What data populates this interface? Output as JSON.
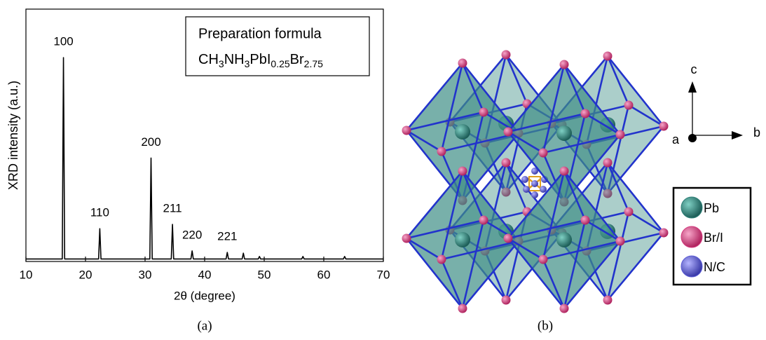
{
  "chart_data": {
    "type": "line",
    "legend_title": "Preparation formula",
    "formula": [
      "CH",
      "3",
      "NH",
      "3",
      "PbI",
      "0.25",
      "Br",
      "2.75"
    ],
    "xlabel": "2θ (degree)",
    "ylabel": "XRD intensity (a.u.)",
    "x": [
      10,
      16.1,
      16.3,
      16.5,
      22.2,
      22.4,
      22.6,
      30.8,
      31.0,
      31.2,
      34.4,
      34.6,
      34.8,
      37.7,
      37.9,
      38.1,
      43.6,
      43.8,
      44.0,
      46.3,
      46.5,
      46.7,
      49.0,
      49.2,
      49.4,
      56.3,
      56.5,
      56.7,
      63.3,
      63.5,
      63.7,
      70
    ],
    "values": [
      1,
      1,
      80.8,
      1,
      1,
      13,
      1,
      1,
      41,
      1,
      1,
      14.7,
      1,
      1,
      4.2,
      1,
      1,
      3.6,
      1,
      1,
      3.3,
      1,
      1,
      2,
      1,
      1,
      2,
      1,
      1,
      2,
      1,
      1
    ],
    "color": "#000000",
    "xlim": [
      10,
      70
    ],
    "ylim": [
      0,
      100
    ],
    "xticks": [
      10,
      20,
      30,
      40,
      50,
      60,
      70
    ],
    "annotations": [
      {
        "text": "100",
        "x": 16.3
      },
      {
        "text": "110",
        "x": 22.4
      },
      {
        "text": "200",
        "x": 31.0
      },
      {
        "text": "211",
        "x": 34.6
      },
      {
        "text": "220",
        "x": 37.9
      },
      {
        "text": "221",
        "x": 43.8
      }
    ]
  },
  "captions": [
    "(a)",
    "(b)"
  ],
  "structure": {
    "axis_labels": [
      "c",
      "a",
      "b"
    ],
    "legend": [
      {
        "label": "Pb",
        "color": "#2e8078"
      },
      {
        "label": "Br/I",
        "color": "#d43a7e"
      },
      {
        "label": "N/C",
        "color": "#5c5cd6"
      }
    ]
  }
}
